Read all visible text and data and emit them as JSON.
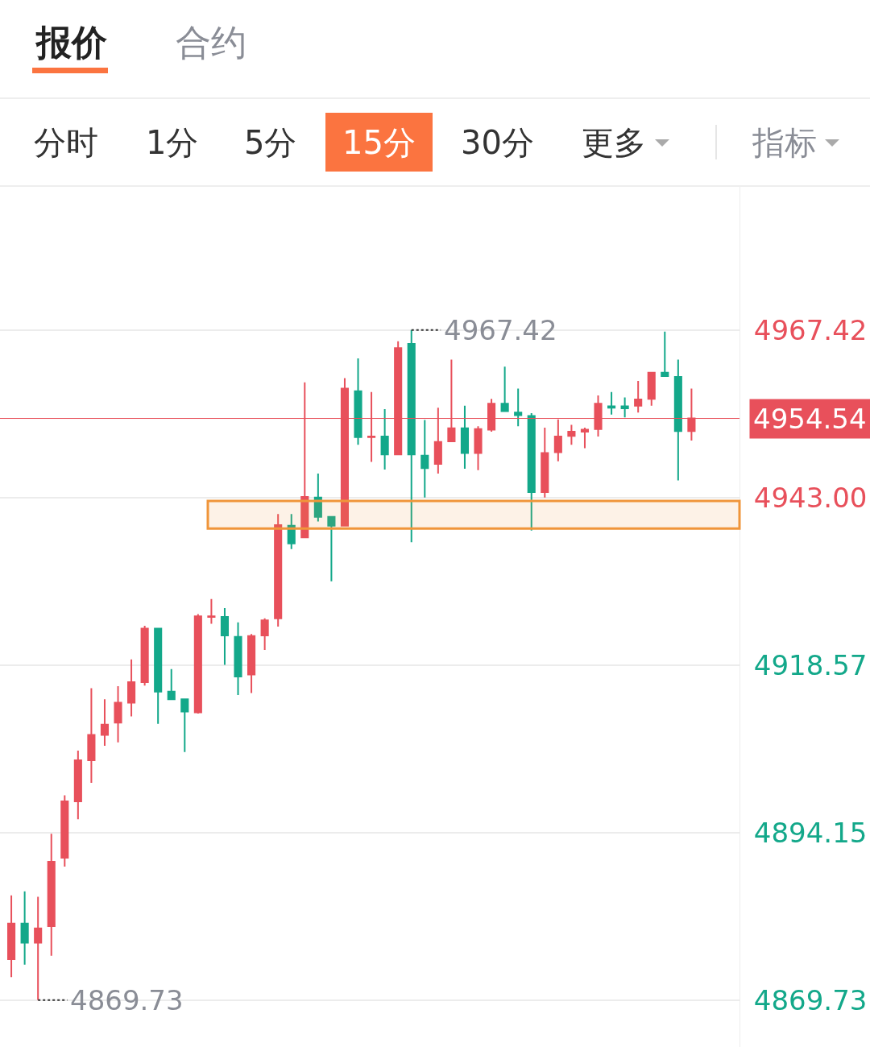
{
  "chart_data": {
    "type": "candlestick",
    "annotations": [
      "报价",
      "合约",
      "分时",
      "1分",
      "5分",
      "15分",
      "30分",
      "更多",
      "指标",
      "4967.42",
      "4869.73"
    ],
    "categories": [
      null,
      null,
      null,
      null,
      null,
      null,
      null,
      null,
      null,
      null,
      null,
      null,
      null,
      null,
      null,
      null,
      null,
      null,
      null,
      null,
      null,
      null,
      null,
      null,
      null,
      null,
      null,
      null,
      null,
      null,
      null,
      null,
      null,
      null,
      null,
      null,
      null,
      null,
      null,
      null,
      null,
      null,
      null,
      null,
      null,
      null,
      null,
      null,
      null,
      null,
      null,
      null
    ],
    "ohlc": [
      [
        4875.7,
        4885.0,
        4873.1,
        4880.9
      ],
      [
        4880.9,
        4885.6,
        4874.9,
        4878.1
      ],
      [
        4878.1,
        4884.8,
        4869.73,
        4880.2
      ],
      [
        4880.5,
        4894.0,
        4876.2,
        4889.9
      ],
      [
        4890.5,
        4899.6,
        4889.2,
        4898.7
      ],
      [
        4898.7,
        4906.1,
        4896.1,
        4904.7
      ],
      [
        4904.7,
        4915.2,
        4901.4,
        4908.4
      ],
      [
        4908.4,
        4913.6,
        4906.8,
        4909.9
      ],
      [
        4910.2,
        4915.5,
        4907.3,
        4913.1
      ],
      [
        4913.1,
        4919.4,
        4911.1,
        4916.1
      ],
      [
        4916.1,
        4924.3,
        4915.6,
        4923.9
      ],
      [
        4923.9,
        4923.9,
        4910.0,
        4914.7
      ],
      [
        4914.7,
        4918.0,
        4913.5,
        4913.6
      ],
      [
        4913.6,
        4913.6,
        4905.9,
        4911.8
      ],
      [
        4911.7,
        4926.0,
        4911.5,
        4925.7
      ],
      [
        4925.6,
        4928.2,
        4924.6,
        4925.7
      ],
      [
        4925.6,
        4926.9,
        4918.6,
        4922.9
      ],
      [
        4922.7,
        4924.8,
        4914.2,
        4916.9
      ],
      [
        4917.2,
        4923.1,
        4914.5,
        4922.8
      ],
      [
        4922.9,
        4925.4,
        4920.8,
        4925.1
      ],
      [
        4925.4,
        4940.6,
        4924.2,
        4939.0
      ],
      [
        4938.9,
        4940.6,
        4935.5,
        4936.3
      ],
      [
        4937.2,
        4959.8,
        4937.2,
        4943.1
      ],
      [
        4943.0,
        4946.5,
        4939.5,
        4940.2
      ],
      [
        4940.2,
        4940.2,
        4930.8,
        4938.9
      ],
      [
        4938.9,
        4960.4,
        4938.9,
        4958.9
      ],
      [
        4958.5,
        4963.3,
        4950.7,
        4951.8
      ],
      [
        4951.8,
        4958.4,
        4948.2,
        4951.9
      ],
      [
        4951.9,
        4955.9,
        4947.1,
        4949.3
      ],
      [
        4949.3,
        4965.8,
        4949.3,
        4964.8
      ],
      [
        4965.4,
        4967.42,
        4936.5,
        4949.3
      ],
      [
        4949.1,
        4954.3,
        4943.0,
        4947.3
      ],
      [
        4947.9,
        4956.1,
        4946.5,
        4951.1
      ],
      [
        4951.2,
        4963.1,
        4951.2,
        4953.1
      ],
      [
        4953.1,
        4956.4,
        4947.2,
        4949.5
      ],
      [
        4949.5,
        4953.4,
        4947.0,
        4953.0
      ],
      [
        4952.9,
        4957.4,
        4952.6,
        4956.7
      ],
      [
        4956.7,
        4962.1,
        4955.6,
        4955.6
      ],
      [
        4955.4,
        4958.9,
        4953.4,
        4955.0
      ],
      [
        4954.9,
        4955.3,
        4938.2,
        4943.8
      ],
      [
        4943.8,
        4953.2,
        4943.0,
        4949.5
      ],
      [
        4949.6,
        4954.4,
        4948.3,
        4951.9
      ],
      [
        4952.0,
        4953.6,
        4950.7,
        4952.6
      ],
      [
        4952.6,
        4953.2,
        4950.2,
        4952.9
      ],
      [
        4953.0,
        4957.9,
        4951.9,
        4956.7
      ],
      [
        4956.3,
        4958.4,
        4955.1,
        4956.1
      ],
      [
        4956.3,
        4957.6,
        4954.7,
        4956.0
      ],
      [
        4956.4,
        4960.0,
        4955.4,
        4957.3
      ],
      [
        4957.4,
        4961.3,
        4956.4,
        4961.2
      ],
      [
        4961.2,
        4967.2,
        4960.7,
        4960.7
      ],
      [
        4960.6,
        4963.1,
        4945.5,
        4952.7
      ],
      [
        4952.7,
        4958.9,
        4951.3,
        4954.54
      ]
    ],
    "colors": [
      "#e8505b",
      "#13a88a",
      "#e8505b",
      "#e8505b",
      "#e8505b",
      "#e8505b",
      "#e8505b",
      "#e8505b",
      "#e8505b",
      "#e8505b",
      "#e8505b",
      "#13a88a",
      "#13a88a",
      "#13a88a",
      "#e8505b",
      "#e8505b",
      "#13a88a",
      "#13a88a",
      "#e8505b",
      "#e8505b",
      "#e8505b",
      "#13a88a",
      "#e8505b",
      "#13a88a",
      "#13a88a",
      "#e8505b",
      "#13a88a",
      "#e8505b",
      "#13a88a",
      "#e8505b",
      "#13a88a",
      "#13a88a",
      "#e8505b",
      "#e8505b",
      "#13a88a",
      "#e8505b",
      "#e8505b",
      "#13a88a",
      "#13a88a",
      "#13a88a",
      "#e8505b",
      "#e8505b",
      "#e8505b",
      "#e8505b",
      "#e8505b",
      "#13a88a",
      "#13a88a",
      "#e8505b",
      "#e8505b",
      "#13a88a",
      "#13a88a",
      "#e8505b"
    ],
    "ylim": [
      4862.9,
      4988.3
    ],
    "yticks": [
      {
        "value": 4967.42,
        "label": "4967.42"
      },
      {
        "value": 4943.0,
        "label": "4943.00"
      },
      {
        "value": 4918.57,
        "label": "4918.57"
      },
      {
        "value": 4894.15,
        "label": "4894.15"
      },
      {
        "value": 4869.73,
        "label": "4869.73"
      }
    ],
    "ref_lines": [
      {
        "axis": "y",
        "value": 4954.54,
        "label": "4954.54",
        "color": "#e8505b"
      }
    ],
    "bands": [
      {
        "axis": "y",
        "from": 4938.5,
        "to": 4942.5,
        "color": "#f0953a"
      }
    ],
    "grid": "y"
  }
}
